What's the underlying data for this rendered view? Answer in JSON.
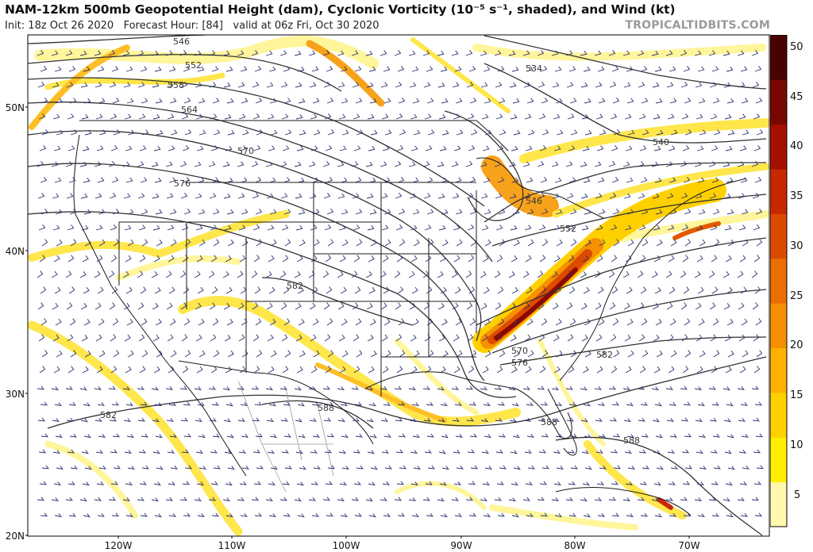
{
  "header": {
    "title": "NAM-12km 500mb Geopotential Height (dam), Cyclonic Vorticity (10⁻⁵ s⁻¹, shaded), and Wind (kt)",
    "init": "Init: 18z Oct 26 2020",
    "forecast_hour": "Forecast Hour: [84]",
    "valid": "valid at 06z Fri, Oct 30 2020",
    "credit": "TROPICALTIDBITS.COM"
  },
  "axes": {
    "latitude_labels": [
      "50N",
      "40N",
      "30N",
      "20N"
    ],
    "longitude_labels": [
      "120W",
      "110W",
      "100W",
      "90W",
      "80W",
      "70W"
    ]
  },
  "colorbar": {
    "ticks": [
      "50",
      "45",
      "40",
      "35",
      "30",
      "25",
      "20",
      "15",
      "10",
      "5"
    ],
    "colors": [
      "#fff9b0",
      "#ffee00",
      "#ffd000",
      "#fdb100",
      "#f59000",
      "#eb6e00",
      "#dc4a00",
      "#c82800",
      "#a51000",
      "#7a0600",
      "#4a0200"
    ]
  },
  "contours": {
    "labels": [
      "546",
      "552",
      "558",
      "564",
      "570",
      "576",
      "582",
      "588",
      "534",
      "540",
      "546",
      "552",
      "570",
      "576",
      "582",
      "582",
      "588",
      "588",
      "588"
    ]
  },
  "colors": {
    "land_border": "#1a1a1a",
    "contour": "#333333",
    "wind_barb": "#2b2f6b",
    "mexico_border": "#9a9a9a"
  }
}
